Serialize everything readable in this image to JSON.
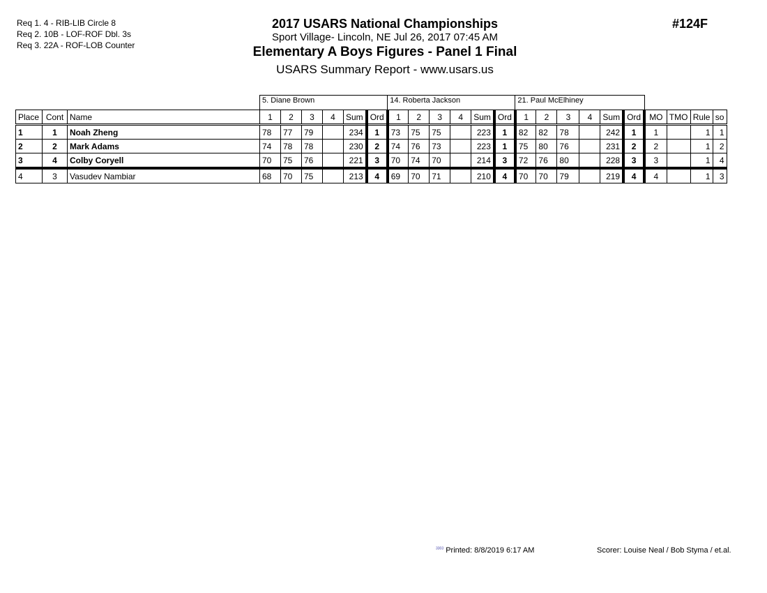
{
  "requirements": [
    "Req  1.  4 - RIB-LIB Circle 8",
    "Req  2.  10B - LOF-ROF Dbl. 3s",
    "Req  3.  22A - ROF-LOB Counter"
  ],
  "header": {
    "title": "2017 USARS National Championships",
    "venue": "Sport Village- Lincoln, NE  Jul 26, 2017  07:45 AM",
    "event": "Elementary A Boys Figures - Panel 1 Final",
    "report": "USARS Summary Report - www.usars.us",
    "event_number": "#124F"
  },
  "judges": [
    "5.  Diane Brown",
    "14.  Roberta Jackson",
    "21.  Paul McElhiney"
  ],
  "columns": {
    "place": "Place",
    "cont": "Cont",
    "name": "Name",
    "scores": [
      "1",
      "2",
      "3",
      "4"
    ],
    "sum": "Sum",
    "ord": "Ord",
    "mo": "MO",
    "tmo": "TMO",
    "rule": "Rule",
    "so": "so"
  },
  "rows": [
    {
      "place": "1",
      "cont": "1",
      "name": "Noah Zheng",
      "bold": true,
      "judges": [
        {
          "s": [
            "78",
            "77",
            "79",
            ""
          ],
          "sum": "234",
          "ord": "1"
        },
        {
          "s": [
            "73",
            "75",
            "75",
            ""
          ],
          "sum": "223",
          "ord": "1"
        },
        {
          "s": [
            "82",
            "82",
            "78",
            ""
          ],
          "sum": "242",
          "ord": "1"
        }
      ],
      "mo": "1",
      "tmo": "",
      "rule": "1",
      "so": "1"
    },
    {
      "place": "2",
      "cont": "2",
      "name": "Mark Adams",
      "bold": true,
      "judges": [
        {
          "s": [
            "74",
            "78",
            "78",
            ""
          ],
          "sum": "230",
          "ord": "2"
        },
        {
          "s": [
            "74",
            "76",
            "73",
            ""
          ],
          "sum": "223",
          "ord": "1"
        },
        {
          "s": [
            "75",
            "80",
            "76",
            ""
          ],
          "sum": "231",
          "ord": "2"
        }
      ],
      "mo": "2",
      "tmo": "",
      "rule": "1",
      "so": "2"
    },
    {
      "place": "3",
      "cont": "4",
      "name": "Colby Coryell",
      "bold": true,
      "judges": [
        {
          "s": [
            "70",
            "75",
            "76",
            ""
          ],
          "sum": "221",
          "ord": "3"
        },
        {
          "s": [
            "70",
            "74",
            "70",
            ""
          ],
          "sum": "214",
          "ord": "3"
        },
        {
          "s": [
            "72",
            "76",
            "80",
            ""
          ],
          "sum": "228",
          "ord": "3"
        }
      ],
      "mo": "3",
      "tmo": "",
      "rule": "1",
      "so": "4"
    },
    {
      "place": "4",
      "cont": "3",
      "name": "Vasudev Nambiar",
      "bold": false,
      "judges": [
        {
          "s": [
            "68",
            "70",
            "75",
            ""
          ],
          "sum": "213",
          "ord": "4"
        },
        {
          "s": [
            "69",
            "70",
            "71",
            ""
          ],
          "sum": "210",
          "ord": "4"
        },
        {
          "s": [
            "70",
            "70",
            "79",
            ""
          ],
          "sum": "219",
          "ord": "4"
        }
      ],
      "mo": "4",
      "tmo": "",
      "rule": "1",
      "so": "3"
    }
  ],
  "footer": {
    "code": "3303",
    "printed": "Printed:  8/8/2019  6:17 AM",
    "scorer": "Scorer:   Louise Neal / Bob Styma / et.al."
  }
}
